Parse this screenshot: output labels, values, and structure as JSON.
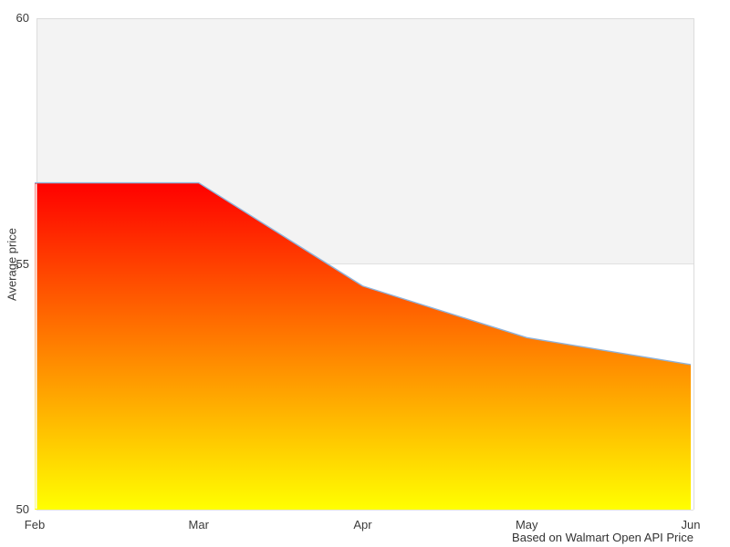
{
  "chart_data": {
    "type": "area",
    "title": "",
    "xlabel": "",
    "ylabel": "Average price",
    "caption": "Based on Walmart Open API Price",
    "categories": [
      "Feb",
      "Mar",
      "Apr",
      "May",
      "Jun"
    ],
    "series": [
      {
        "name": "Average price",
        "values": [
          56.65,
          56.65,
          54.55,
          53.5,
          52.95
        ]
      }
    ],
    "ylim": [
      50,
      60
    ],
    "yticks": [
      50,
      55,
      60
    ],
    "grid": false,
    "legend_position": "none",
    "plot_band": {
      "from": 55,
      "to": 60
    },
    "markers": false
  },
  "colors": {
    "background": "#ffffff",
    "band_fill": "#f3f3f3",
    "band_border": "#e0e0e0",
    "plot_border": "#dcdcdc",
    "line": "#8fb3da",
    "area_gradient_top": "#ff0000",
    "area_gradient_bottom": "#ffff00",
    "axis_seam": "#fafafa",
    "label_text": "#3a3a3a"
  }
}
